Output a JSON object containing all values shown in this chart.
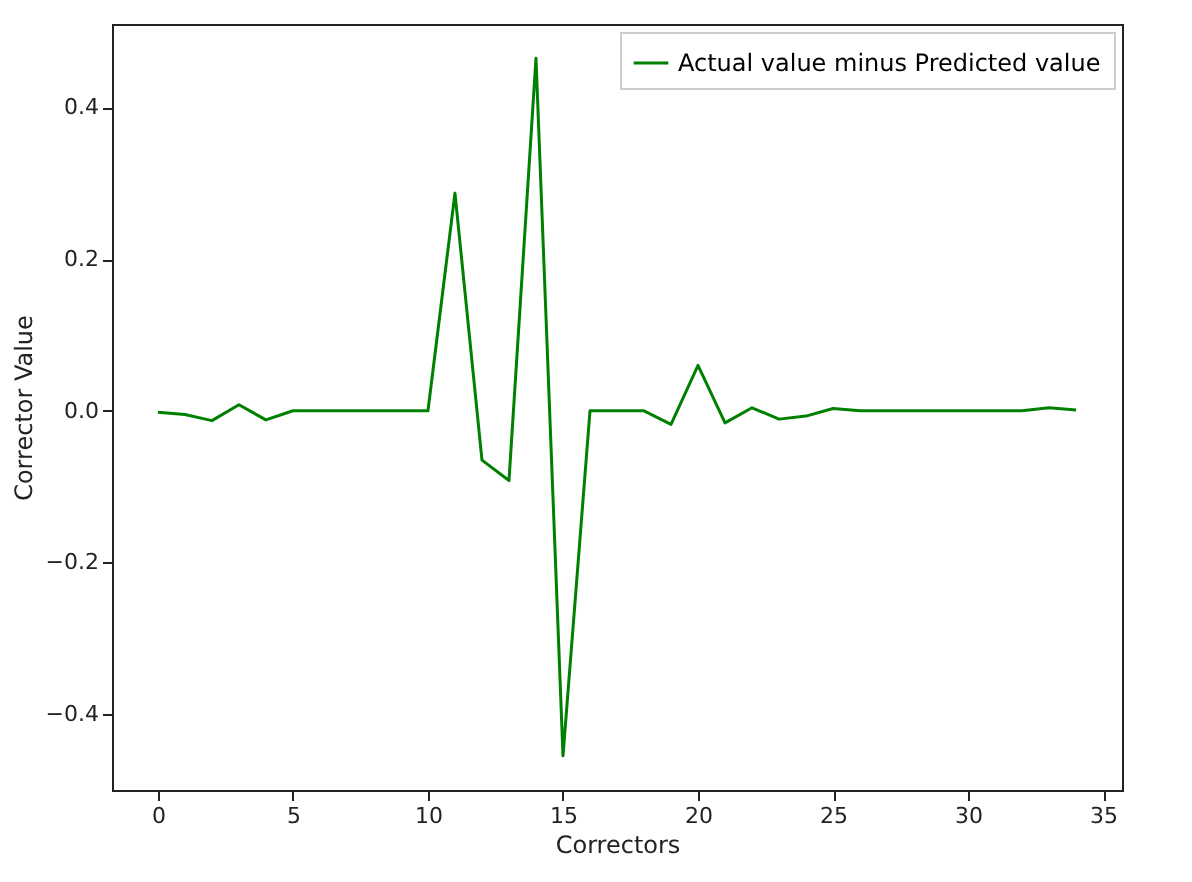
{
  "chart_data": {
    "type": "line",
    "xlabel": "Correctors",
    "ylabel": "Corrector Value",
    "x": [
      0,
      1,
      2,
      3,
      4,
      5,
      6,
      7,
      8,
      9,
      10,
      11,
      12,
      13,
      14,
      15,
      16,
      17,
      18,
      19,
      20,
      21,
      22,
      23,
      24,
      25,
      26,
      27,
      28,
      29,
      30,
      31,
      32,
      33,
      34
    ],
    "series": [
      {
        "name": "Actual value minus Predicted value",
        "color": "#008000",
        "values": [
          -0.002,
          -0.005,
          -0.013,
          0.008,
          -0.012,
          0,
          0,
          0,
          0,
          0,
          0,
          0.287,
          -0.065,
          -0.092,
          0.465,
          -0.455,
          0,
          0,
          0,
          -0.018,
          0.06,
          -0.016,
          0.004,
          -0.011,
          -0.007,
          0.003,
          0,
          0,
          0,
          0,
          0,
          0,
          0,
          0.004,
          0.001
        ]
      }
    ],
    "xlim": [
      -1.7,
      35.7
    ],
    "xticks": [
      0,
      5,
      10,
      15,
      20,
      25,
      30,
      35
    ],
    "ylim": [
      -0.5,
      0.51
    ],
    "yticks": [
      {
        "value": -0.4,
        "label": "−0.4"
      },
      {
        "value": -0.2,
        "label": "−0.2"
      },
      {
        "value": 0,
        "label": "0.0"
      },
      {
        "value": 0.2,
        "label": "0.2"
      },
      {
        "value": 0.4,
        "label": "0.4"
      }
    ],
    "grid": false,
    "legend": "top right",
    "line_style": "solid",
    "marker": "none"
  }
}
